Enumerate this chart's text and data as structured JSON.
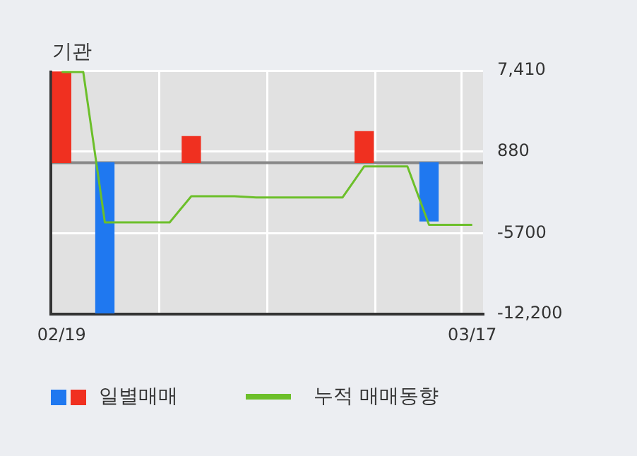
{
  "chart_data": {
    "type": "bar",
    "title": "기관",
    "categories": [
      "02/19",
      null,
      null,
      null,
      null,
      null,
      null,
      null,
      null,
      null,
      null,
      null,
      null,
      null,
      null,
      null,
      null,
      null,
      null,
      "03/17"
    ],
    "series": [
      {
        "name": "일별매매",
        "colors": [
          "#f03020",
          "#f03020",
          "#1f78f0",
          "#f03020",
          "#f03020",
          "#f03020",
          "#f03020",
          "#f03020",
          "#f03020",
          "#f03020",
          "#f03020",
          "#f03020",
          "#f03020",
          "#f03020",
          "#f03020",
          "#f03020",
          "#f03020",
          "#1f78f0",
          "#f03020",
          "#f03020"
        ],
        "values": [
          7300,
          null,
          -12100,
          null,
          null,
          null,
          2100,
          null,
          null,
          null,
          null,
          null,
          null,
          null,
          2500,
          null,
          null,
          -4700,
          null,
          null
        ]
      },
      {
        "name": "누적 매매동향",
        "type": "line",
        "color": "#6cbf2a",
        "values": [
          7300,
          7300,
          -4800,
          -4800,
          -4800,
          -4800,
          -2700,
          -2700,
          -2700,
          -2800,
          -2800,
          -2800,
          -2800,
          -2800,
          -300,
          -300,
          -300,
          -5000,
          -5000,
          -5000
        ]
      }
    ],
    "ylim": [
      -12200,
      7410
    ],
    "yticks": [
      {
        "value": 7410,
        "label": "7,410"
      },
      880,
      -5700,
      {
        "value": -12200,
        "label": "-12,200"
      }
    ],
    "ref_lines": [
      {
        "axis": "y",
        "value": 0,
        "color": "#888888"
      }
    ],
    "grid": true,
    "legend": "bottom",
    "marker": "none"
  }
}
